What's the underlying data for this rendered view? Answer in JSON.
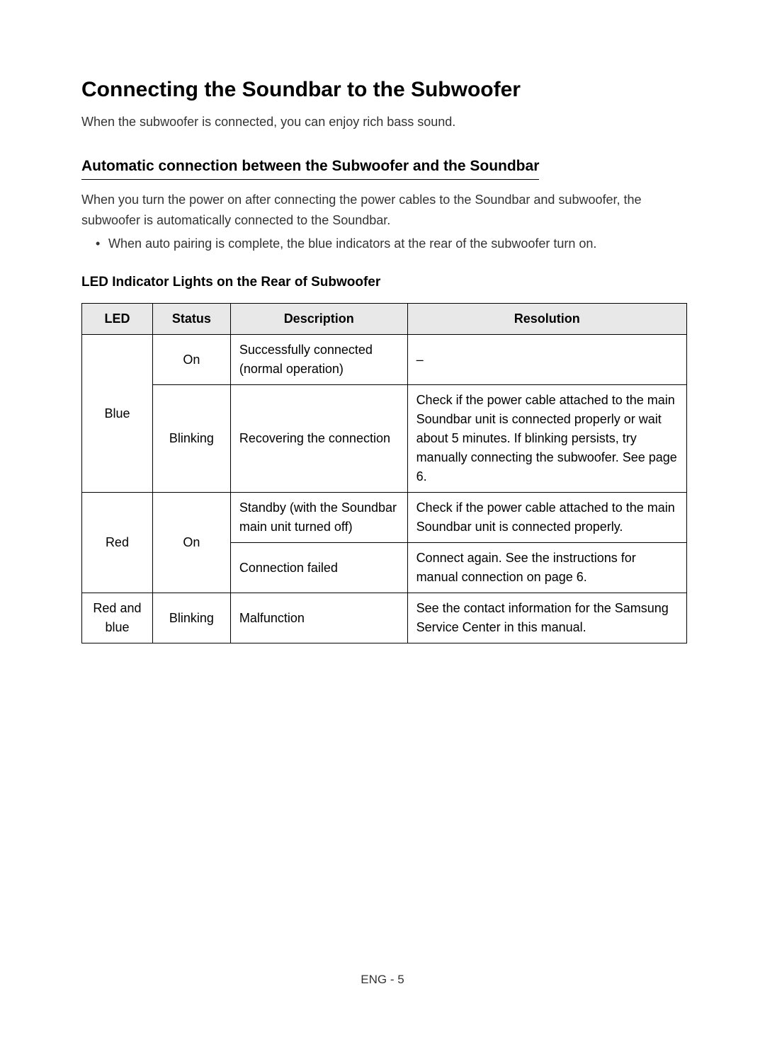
{
  "headings": {
    "main": "Connecting the Soundbar to the Subwoofer",
    "sub": "Automatic connection between the Subwoofer and the Soundbar",
    "table": "LED Indicator Lights on the Rear of Subwoofer"
  },
  "intro": "When the subwoofer is connected, you can enjoy rich bass sound.",
  "description": "When you turn the power on after connecting the power cables to the Soundbar and subwoofer, the subwoofer is automatically connected to the Soundbar.",
  "bullet": "When auto pairing is complete, the blue indicators at the rear of the subwoofer turn on.",
  "table": {
    "headers": {
      "led": "LED",
      "status": "Status",
      "description": "Description",
      "resolution": "Resolution"
    },
    "rows": {
      "blue_on": {
        "led": "Blue",
        "status": "On",
        "description": "Successfully connected (normal operation)",
        "resolution": "–"
      },
      "blue_blinking": {
        "status": "Blinking",
        "description": "Recovering the connection",
        "resolution": "Check if the power cable attached to the main Soundbar unit is connected properly or wait about 5 minutes. If blinking persists, try manually connecting the subwoofer. See page 6."
      },
      "red_standby": {
        "led": "Red",
        "status": "On",
        "description": "Standby (with the Soundbar main unit turned off)",
        "resolution": "Check if the power cable attached to the main Soundbar unit is connected properly."
      },
      "red_failed": {
        "description": "Connection failed",
        "resolution": "Connect again. See the instructions for manual connection on page 6."
      },
      "redblue_blinking": {
        "led": "Red and blue",
        "status": "Blinking",
        "description": "Malfunction",
        "resolution": "See the contact information for the Samsung Service Center in this manual."
      }
    }
  },
  "footer": "ENG - 5",
  "colors": {
    "text_primary": "#000000",
    "text_secondary": "#333333",
    "background": "#ffffff",
    "table_header_bg": "#e8e8e8",
    "table_border": "#000000"
  },
  "typography": {
    "main_heading_size": 30,
    "sub_heading_size": 21,
    "table_heading_size": 19,
    "body_size": 18,
    "footer_size": 17
  }
}
